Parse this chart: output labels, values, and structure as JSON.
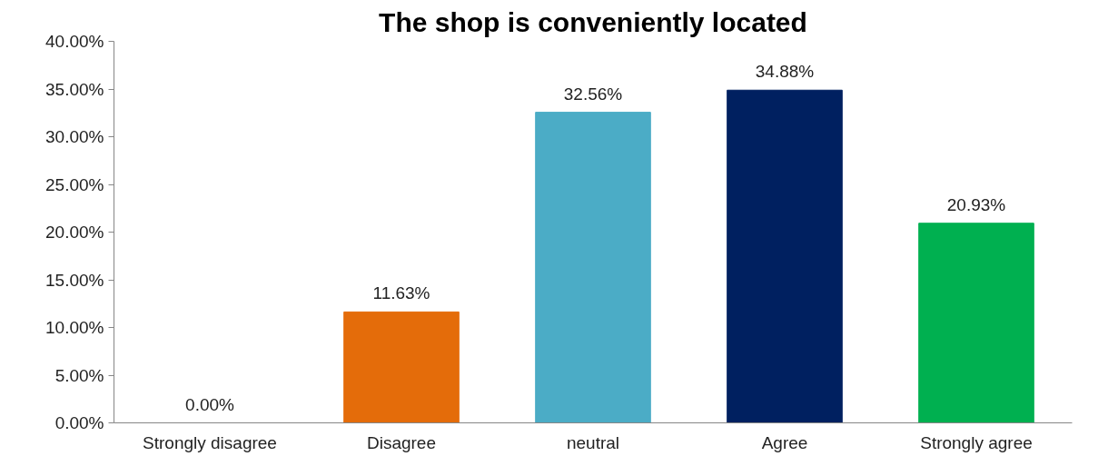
{
  "chart_data": {
    "type": "bar",
    "title": "The shop is conveniently located",
    "categories": [
      "Strongly disagree",
      "Disagree",
      "neutral",
      "Agree",
      "Strongly agree"
    ],
    "values": [
      0,
      11.63,
      32.56,
      34.88,
      20.93
    ],
    "colors": [
      "#4472c4",
      "#e46c0a",
      "#4bacc6",
      "#002060",
      "#00b050"
    ],
    "value_labels": [
      "0.00%",
      "11.63%",
      "32.56%",
      "34.88%",
      "20.93%"
    ],
    "ylim": [
      0,
      40
    ],
    "yticks": [
      {
        "value": 0,
        "label": "0.00%"
      },
      {
        "value": 5,
        "label": "5.00%"
      },
      {
        "value": 10,
        "label": "10.00%"
      },
      {
        "value": 15,
        "label": "15.00%"
      },
      {
        "value": 20,
        "label": "20.00%"
      },
      {
        "value": 25,
        "label": "25.00%"
      },
      {
        "value": 30,
        "label": "30.00%"
      },
      {
        "value": 35,
        "label": "35.00%"
      },
      {
        "value": 40,
        "label": "40.00%"
      }
    ],
    "grid": false
  }
}
